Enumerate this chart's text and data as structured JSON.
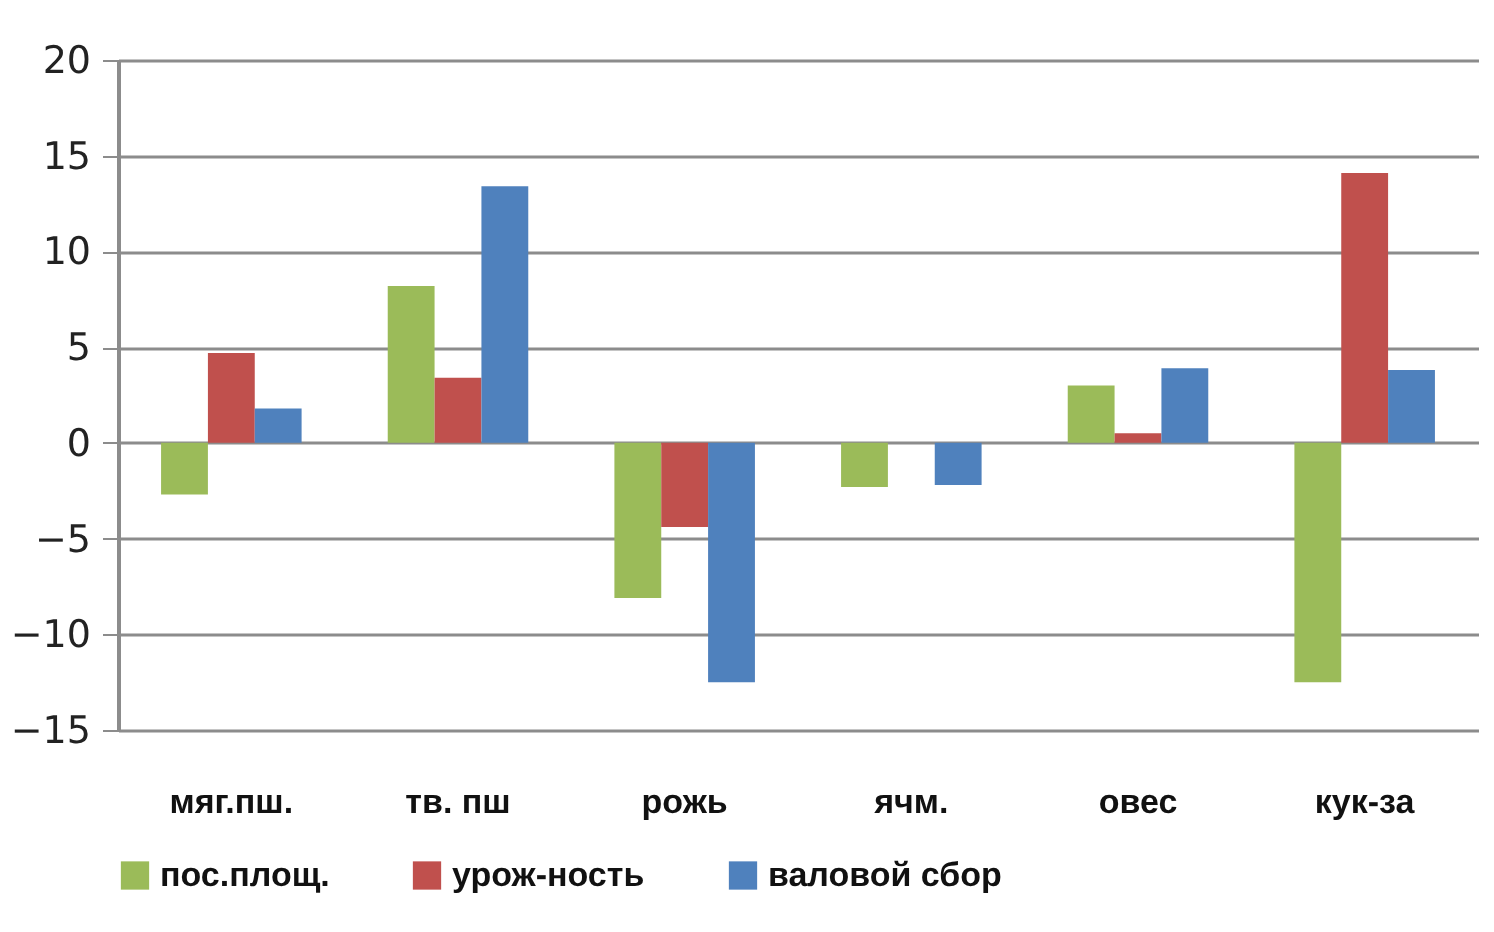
{
  "chart_data": {
    "type": "bar",
    "categories": [
      "мяг.пш.",
      "тв. пш",
      "рожь",
      "ячм.",
      "овес",
      "кук-за"
    ],
    "series": [
      {
        "name": "пос.площ.",
        "color": "#9bbb59",
        "values": [
          -2.7,
          8.2,
          -8.1,
          -2.3,
          3.0,
          -12.5
        ]
      },
      {
        "name": "урож-ность",
        "color": "#c0504d",
        "values": [
          4.7,
          3.4,
          -4.4,
          0,
          0.5,
          14.1
        ]
      },
      {
        "name": "валовой сбор",
        "color": "#4f81bd",
        "values": [
          1.8,
          13.4,
          -12.5,
          -2.2,
          3.9,
          3.8
        ]
      }
    ],
    "ylim": [
      -15,
      20
    ],
    "yticks": [
      -15,
      -10,
      -5,
      0,
      5,
      10,
      15,
      20
    ],
    "grid": "y",
    "legend": "bottom"
  }
}
